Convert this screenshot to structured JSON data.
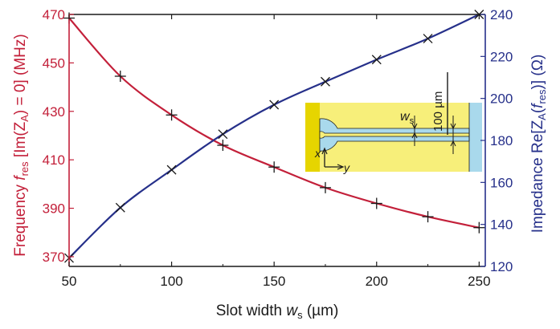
{
  "chart_data": {
    "type": "line",
    "xlabel_parts": {
      "main": "Slot width ",
      "var": "w",
      "sub": "s",
      "unit": " (µm)"
    },
    "ylabel_left_parts": {
      "pre": "Frequency ",
      "var": "f",
      "sub": "res",
      "mid": " [Im(Z",
      "sub2": "A",
      "post": ") = 0] (MHz)"
    },
    "ylabel_right_parts": {
      "pre": "Impedance Re[Z",
      "sub": "A",
      "mid": "(",
      "var": "f",
      "sub2": "res",
      "post": ")] (Ω)"
    },
    "x_ticks": [
      50,
      100,
      150,
      200,
      250
    ],
    "y_left_ticks": [
      370,
      390,
      410,
      430,
      450,
      470
    ],
    "y_right_ticks": [
      120,
      140,
      160,
      180,
      200,
      220,
      240
    ],
    "xlim": [
      50,
      253
    ],
    "ylim_left": [
      366,
      470
    ],
    "ylim_right": [
      120,
      240
    ],
    "colors": {
      "left": "#c3203a",
      "right": "#26308a",
      "marker": "#1a1a1a"
    },
    "series": [
      {
        "axis": "left",
        "marker": "+",
        "x": [
          50,
          75,
          100,
          125,
          150,
          175,
          200,
          225,
          250
        ],
        "y": [
          468.5,
          444.5,
          428.5,
          416,
          407,
          398.5,
          392,
          386.5,
          382
        ]
      },
      {
        "axis": "right",
        "marker": "x",
        "x": [
          50,
          75,
          100,
          125,
          150,
          175,
          200,
          225,
          250
        ],
        "y": [
          124,
          148,
          166,
          183,
          197,
          208,
          218.5,
          228.5,
          240
        ]
      }
    ],
    "inset": {
      "dimension_label": "100 µm",
      "width_label_var": "w",
      "width_label_sub": "s",
      "axis_x": "x",
      "axis_y": "y",
      "colors": {
        "metal": "#f7ef7a",
        "dark_metal": "#e6d500",
        "slot": "#a9d9ec",
        "line": "#1a1a1a"
      }
    }
  }
}
